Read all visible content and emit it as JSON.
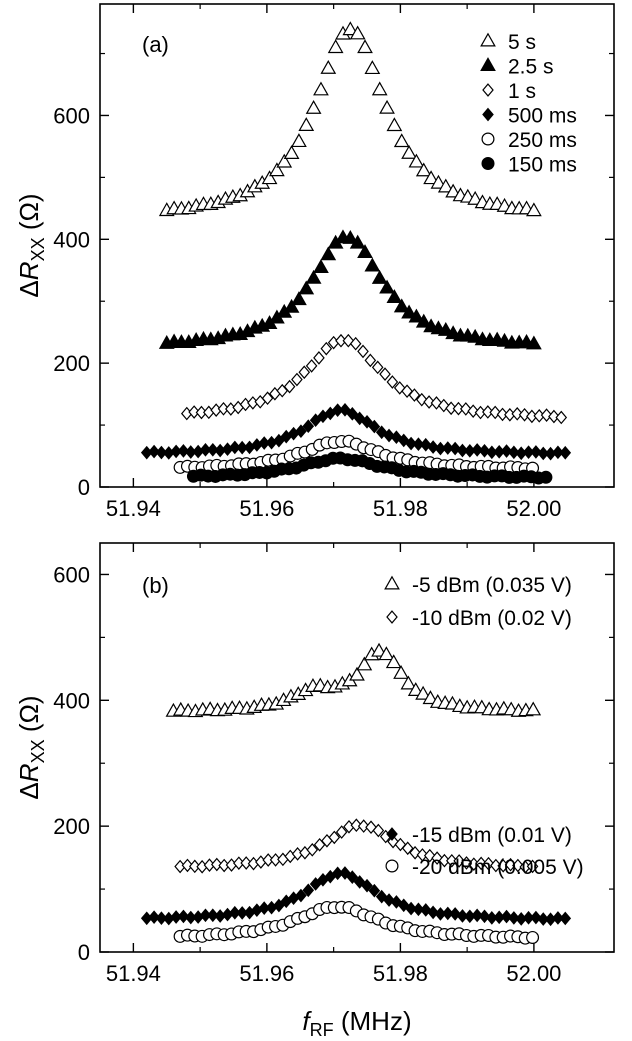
{
  "chart_data": [
    {
      "type": "scatter",
      "panel_label": "(a)",
      "xlabel": "",
      "ylabel": "ΔR",
      "ylabel_sub": "XX",
      "ylabel_unit": "(Ω)",
      "xlim": [
        51.935,
        52.012
      ],
      "ylim": [
        0,
        780
      ],
      "xticks": [
        51.94,
        51.96,
        51.98,
        52.0
      ],
      "xtick_labels": [
        "51.94",
        "51.96",
        "51.98",
        "52.00"
      ],
      "yticks": [
        0,
        200,
        400,
        600
      ],
      "ytick_labels": [
        "0",
        "200",
        "400",
        "600"
      ],
      "legend_position": "top-right",
      "series": [
        {
          "name": "5 s",
          "marker": "triangle-open",
          "x_start": 51.945,
          "x_end": 52.0,
          "step": 0.0011,
          "base": 430,
          "peak": 310,
          "center": 51.9725,
          "width": 0.0065,
          "wing": 0
        },
        {
          "name": "2.5 s",
          "marker": "triangle-filled",
          "x_start": 51.945,
          "x_end": 52.0,
          "step": 0.0011,
          "base": 222,
          "peak": 182,
          "center": 51.972,
          "width": 0.0065,
          "wing": 0
        },
        {
          "name": "1 s",
          "marker": "diamond-open",
          "x_start": 51.948,
          "x_end": 52.005,
          "step": 0.0011,
          "base": 108,
          "peak": 130,
          "center": 51.9715,
          "width": 0.007,
          "wing": 0
        },
        {
          "name": "500 ms",
          "marker": "diamond-filled",
          "x_start": 51.942,
          "x_end": 52.005,
          "step": 0.0011,
          "base": 52,
          "peak": 72,
          "center": 51.971,
          "width": 0.0065,
          "wing": 0
        },
        {
          "name": "250 ms",
          "marker": "circle-open",
          "x_start": 51.947,
          "x_end": 52.0,
          "step": 0.0011,
          "base": 28,
          "peak": 46,
          "center": 51.971,
          "width": 0.007,
          "wing": 0
        },
        {
          "name": "150 ms",
          "marker": "circle-filled",
          "x_start": 51.949,
          "x_end": 52.002,
          "step": 0.0011,
          "base": 14,
          "peak": 32,
          "center": 51.971,
          "width": 0.0075,
          "wing": 0
        }
      ]
    },
    {
      "type": "scatter",
      "panel_label": "(b)",
      "xlabel": "f",
      "xlabel_sub": "RF",
      "xlabel_unit": "(MHz)",
      "ylabel": "ΔR",
      "ylabel_sub": "XX",
      "ylabel_unit": "(Ω)",
      "xlim": [
        51.935,
        52.012
      ],
      "ylim": [
        0,
        650
      ],
      "xticks": [
        51.94,
        51.96,
        51.98,
        52.0
      ],
      "xtick_labels": [
        "51.94",
        "51.96",
        "51.98",
        "52.00"
      ],
      "yticks": [
        0,
        200,
        400,
        600
      ],
      "ytick_labels": [
        "0",
        "200",
        "400",
        "600"
      ],
      "legend_position": "top-right and middle-right",
      "series": [
        {
          "name": "-5 dBm (0.035 V)",
          "marker": "triangle-open",
          "x_start": 51.946,
          "x_end": 52.0,
          "step": 0.0011,
          "base": 380,
          "peak": 95,
          "center": 51.977,
          "width": 0.004,
          "wing": 28,
          "wing_center": 51.967,
          "wing_width": 0.004
        },
        {
          "name": "-10 dBm (0.02 V)",
          "marker": "diamond-open",
          "x_start": 51.947,
          "x_end": 52.0,
          "step": 0.0011,
          "base": 132,
          "peak": 70,
          "center": 51.974,
          "width": 0.0065,
          "wing": 0
        },
        {
          "name": "-15 dBm (0.01 V)",
          "marker": "diamond-filled",
          "x_start": 51.942,
          "x_end": 52.005,
          "step": 0.0011,
          "base": 50,
          "peak": 75,
          "center": 51.971,
          "width": 0.0065,
          "wing": 0
        },
        {
          "name": "-20 dBm (0.005 V)",
          "marker": "circle-open",
          "x_start": 51.947,
          "x_end": 52.0,
          "step": 0.0011,
          "base": 20,
          "peak": 52,
          "center": 51.9705,
          "width": 0.0075,
          "wing": 0
        }
      ]
    }
  ]
}
